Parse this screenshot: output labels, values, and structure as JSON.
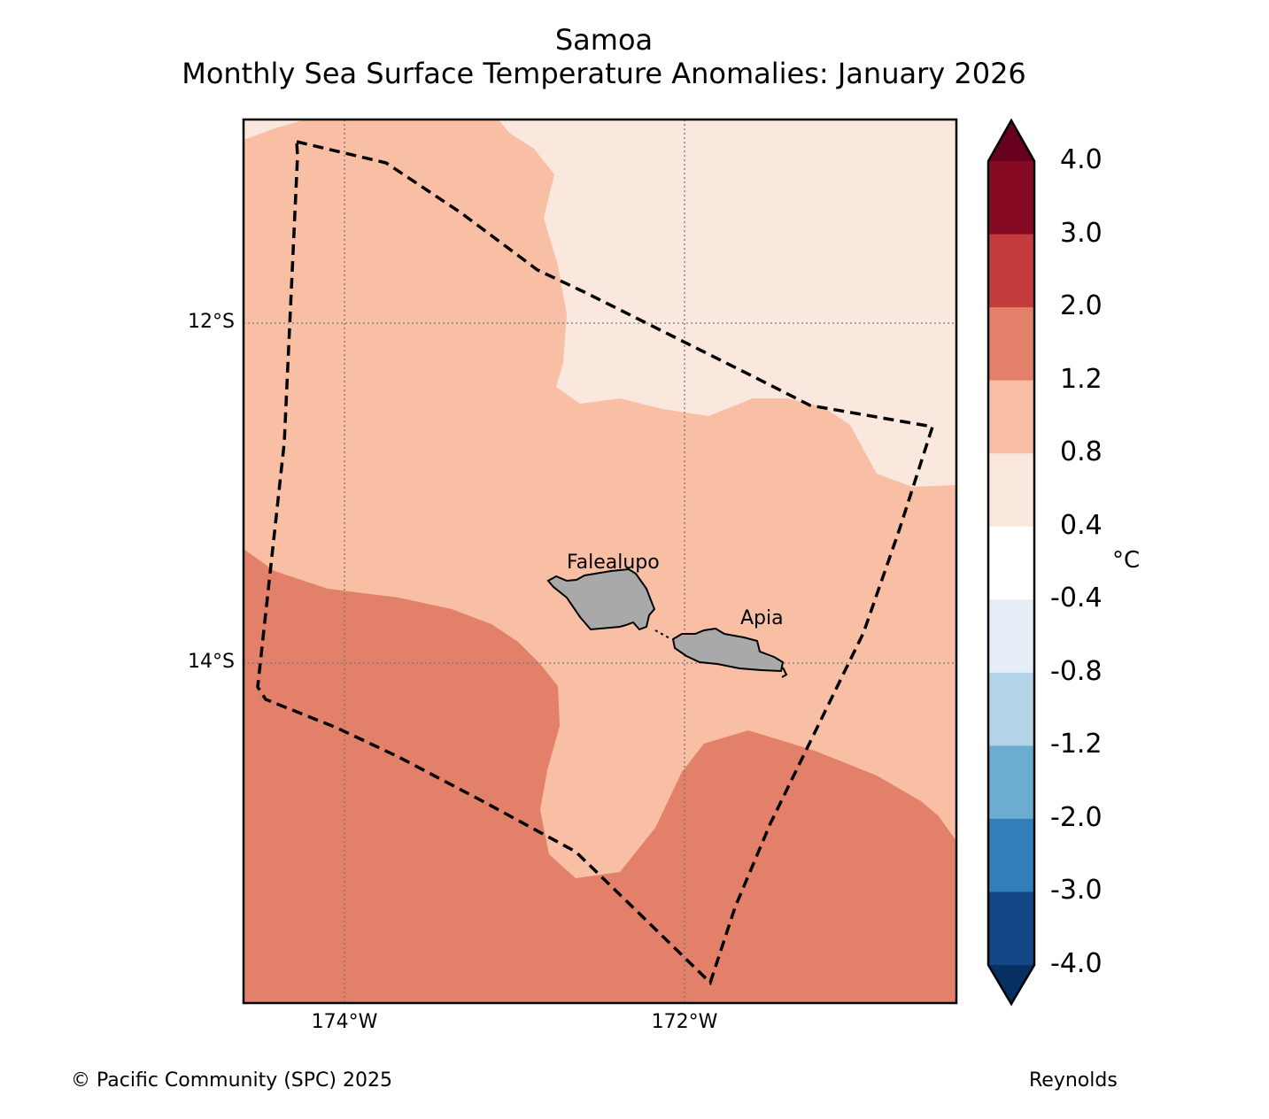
{
  "title": {
    "line1": "Samoa",
    "line2": "Monthly Sea Surface Temperature Anomalies: January 2026"
  },
  "map": {
    "lat_labels": [
      "12°S",
      "14°S"
    ],
    "lon_labels": [
      "174°W",
      "172°W"
    ],
    "places": [
      "Falealupo",
      "Apia"
    ],
    "land_color": "#a9a9a9",
    "eez_boundary_style": "dashed black"
  },
  "colorbar": {
    "unit": "°C",
    "tick_labels": [
      "4.0",
      "3.0",
      "2.0",
      "1.2",
      "0.8",
      "0.4",
      "-0.4",
      "-0.8",
      "-1.2",
      "-2.0",
      "-3.0",
      "-4.0"
    ],
    "bin_colors": [
      "#67001f",
      "#870a24",
      "#c33b3b",
      "#e3806a",
      "#f8bfa4",
      "#fae8de",
      "#ffffff",
      "#e5eef6",
      "#b3d5e7",
      "#6cacd1",
      "#337eb8",
      "#144787",
      "#053061"
    ]
  },
  "footer": {
    "copyright": "© Pacific Community (SPC) 2025",
    "source": "Reynolds"
  }
}
